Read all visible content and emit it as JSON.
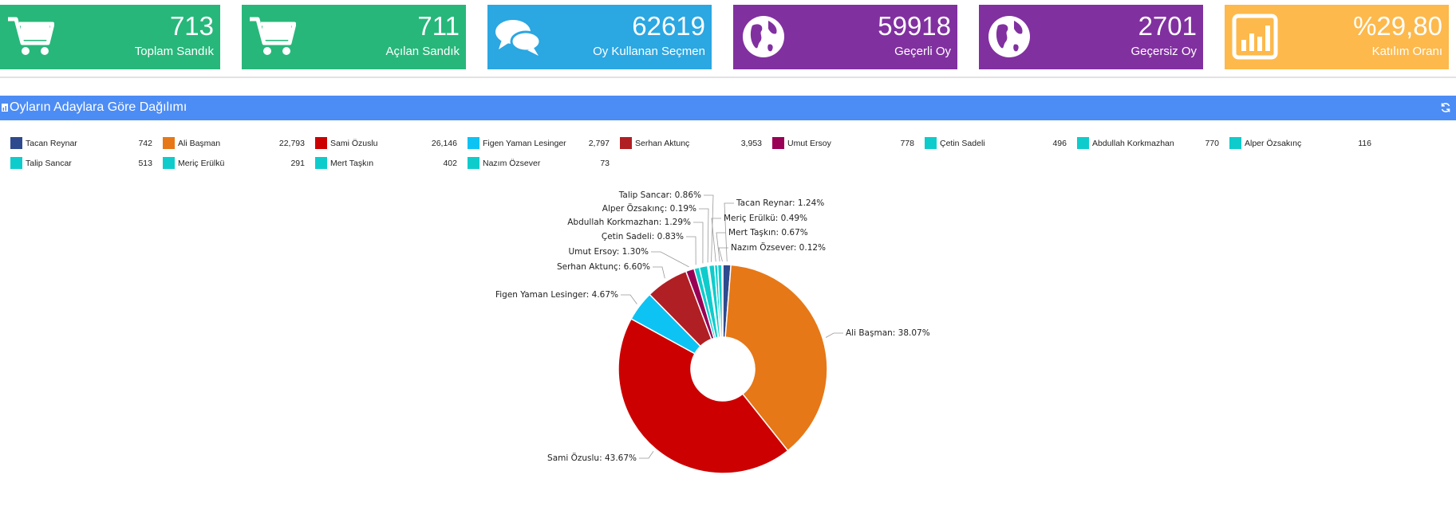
{
  "stats": [
    {
      "value": "713",
      "label": "Toplam Sandık",
      "color": "#27b77a",
      "icon": "shopping-cart-icon"
    },
    {
      "value": "711",
      "label": "Açılan Sandık",
      "color": "#27b77a",
      "icon": "shopping-cart-icon"
    },
    {
      "value": "62619",
      "label": "Oy Kullanan Seçmen",
      "color": "#2ba7e2",
      "icon": "chat-bubbles-icon"
    },
    {
      "value": "59918",
      "label": "Geçerli Oy",
      "color": "#8130a0",
      "icon": "globe-icon"
    },
    {
      "value": "2701",
      "label": "Geçersiz Oy",
      "color": "#8130a0",
      "icon": "globe-icon"
    },
    {
      "value": "%29,80",
      "label": "Katılım Oranı",
      "color": "#fdb94c",
      "icon": "bar-chart-icon"
    }
  ],
  "panel": {
    "title": "Oyların Adaylara Göre Dağılımı",
    "header_color": "#4c8cf5"
  },
  "chart_data": {
    "type": "pie",
    "donut": true,
    "title": "Oyların Adaylara Göre Dağılımı",
    "legend_position": "top",
    "slices": [
      {
        "name": "Tacan Reynar",
        "value": 742,
        "value_label": "742",
        "percent_label": "Tacan Reynar: 1.24%",
        "color": "#2e4a8e"
      },
      {
        "name": "Ali Başman",
        "value": 22793,
        "value_label": "22,793",
        "percent_label": "Ali Başman: 38.07%",
        "color": "#e67817"
      },
      {
        "name": "Sami Özuslu",
        "value": 26146,
        "value_label": "26,146",
        "percent_label": "Sami Özuslu: 43.67%",
        "color": "#cc0000"
      },
      {
        "name": "Figen Yaman Lesinger",
        "value": 2797,
        "value_label": "2,797",
        "percent_label": "Figen Yaman Lesinger: 4.67%",
        "color": "#0dc3f4"
      },
      {
        "name": "Serhan Aktunç",
        "value": 3953,
        "value_label": "3,953",
        "percent_label": "Serhan Aktunç: 6.60%",
        "color": "#b01f24"
      },
      {
        "name": "Umut Ersoy",
        "value": 778,
        "value_label": "778",
        "percent_label": "Umut Ersoy: 1.30%",
        "color": "#990055"
      },
      {
        "name": "Çetin Sadeli",
        "value": 496,
        "value_label": "496",
        "percent_label": "Çetin Sadeli: 0.83%",
        "color": "#0fcccc"
      },
      {
        "name": "Abdullah Korkmazhan",
        "value": 770,
        "value_label": "770",
        "percent_label": "Abdullah Korkmazhan: 1.29%",
        "color": "#0fcccc"
      },
      {
        "name": "Alper Özsakınç",
        "value": 116,
        "value_label": "116",
        "percent_label": "Alper Özsakınç: 0.19%",
        "color": "#0fcccc"
      },
      {
        "name": "Talip Sancar",
        "value": 513,
        "value_label": "513",
        "percent_label": "Talip Sancar: 0.86%",
        "color": "#0fcccc"
      },
      {
        "name": "Meriç Erülkü",
        "value": 291,
        "value_label": "291",
        "percent_label": "Meriç Erülkü: 0.49%",
        "color": "#0fcccc"
      },
      {
        "name": "Mert Taşkın",
        "value": 402,
        "value_label": "402",
        "percent_label": "Mert Taşkın: 0.67%",
        "color": "#0fcccc"
      },
      {
        "name": "Nazım Özsever",
        "value": 73,
        "value_label": "73",
        "percent_label": "Nazım Özsever: 0.12%",
        "color": "#0fcccc"
      }
    ]
  }
}
